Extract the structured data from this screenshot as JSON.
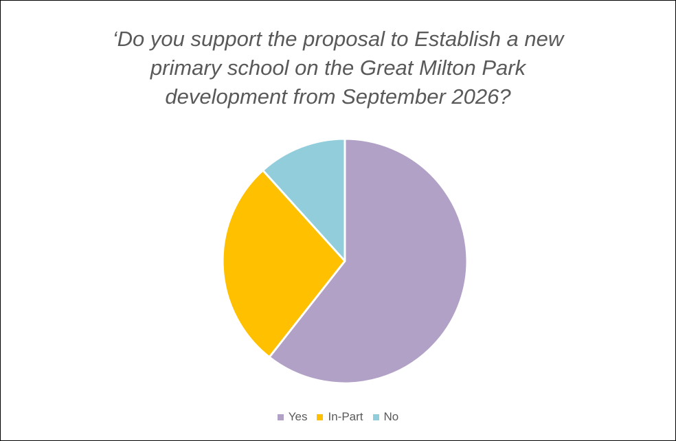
{
  "chart_data": {
    "type": "pie",
    "title_lines": [
      "‘Do you support the proposal to Establish a new",
      "primary school on the Great Milton Park",
      "development from September 2026?"
    ],
    "categories": [
      "Yes",
      "In-Part",
      "No"
    ],
    "values": [
      60.6,
      27.7,
      11.7
    ],
    "colors": [
      "#b2a1c7",
      "#ffc000",
      "#92cddc"
    ],
    "start_angle_deg": 0,
    "direction": "clockwise",
    "legend_position": "bottom"
  }
}
